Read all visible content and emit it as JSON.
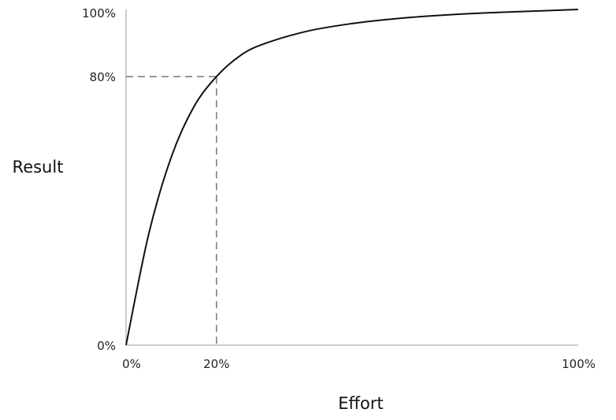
{
  "chart_data": {
    "type": "line",
    "title": "",
    "xlabel": "Effort",
    "ylabel": "Result",
    "xlim": [
      0,
      100
    ],
    "ylim": [
      0,
      100
    ],
    "x_ticks": [
      "0%",
      "20%",
      "100%"
    ],
    "y_ticks": [
      "0%",
      "80%",
      "100%"
    ],
    "grid": false,
    "series": [
      {
        "x": [
          0,
          5,
          10,
          15,
          20,
          25,
          30,
          40,
          50,
          60,
          70,
          80,
          90,
          100
        ],
        "values": [
          0,
          33,
          56,
          71,
          80,
          86,
          89.5,
          93.5,
          95.8,
          97.3,
          98.3,
          99.0,
          99.5,
          100
        ]
      }
    ],
    "reference_point": {
      "x": 20,
      "y": 80
    }
  }
}
